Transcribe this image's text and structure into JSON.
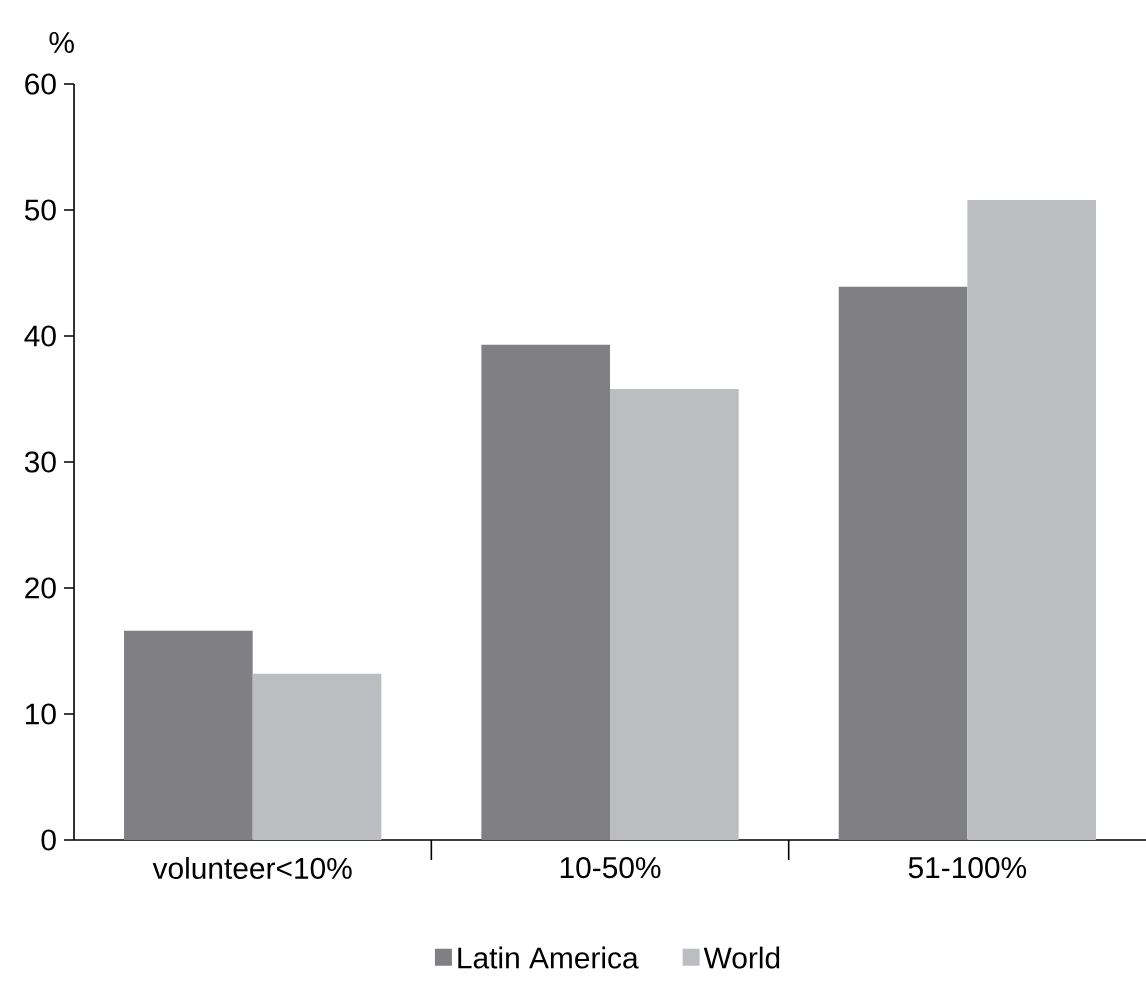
{
  "chart_data": {
    "type": "bar",
    "ylabel": "%",
    "categories": [
      "volunteer<10%",
      "10-50%",
      "51-100%"
    ],
    "series": [
      {
        "name": "Latin America",
        "color": "#808084",
        "values": [
          16.6,
          39.3,
          43.9
        ]
      },
      {
        "name": "World",
        "color": "#bcbdc1",
        "values": [
          13.2,
          35.8,
          50.8
        ]
      }
    ],
    "ylim": [
      0,
      60
    ],
    "yticks": [
      0,
      10,
      20,
      30,
      40,
      50,
      60
    ],
    "grid": false,
    "legend": "bottom"
  }
}
